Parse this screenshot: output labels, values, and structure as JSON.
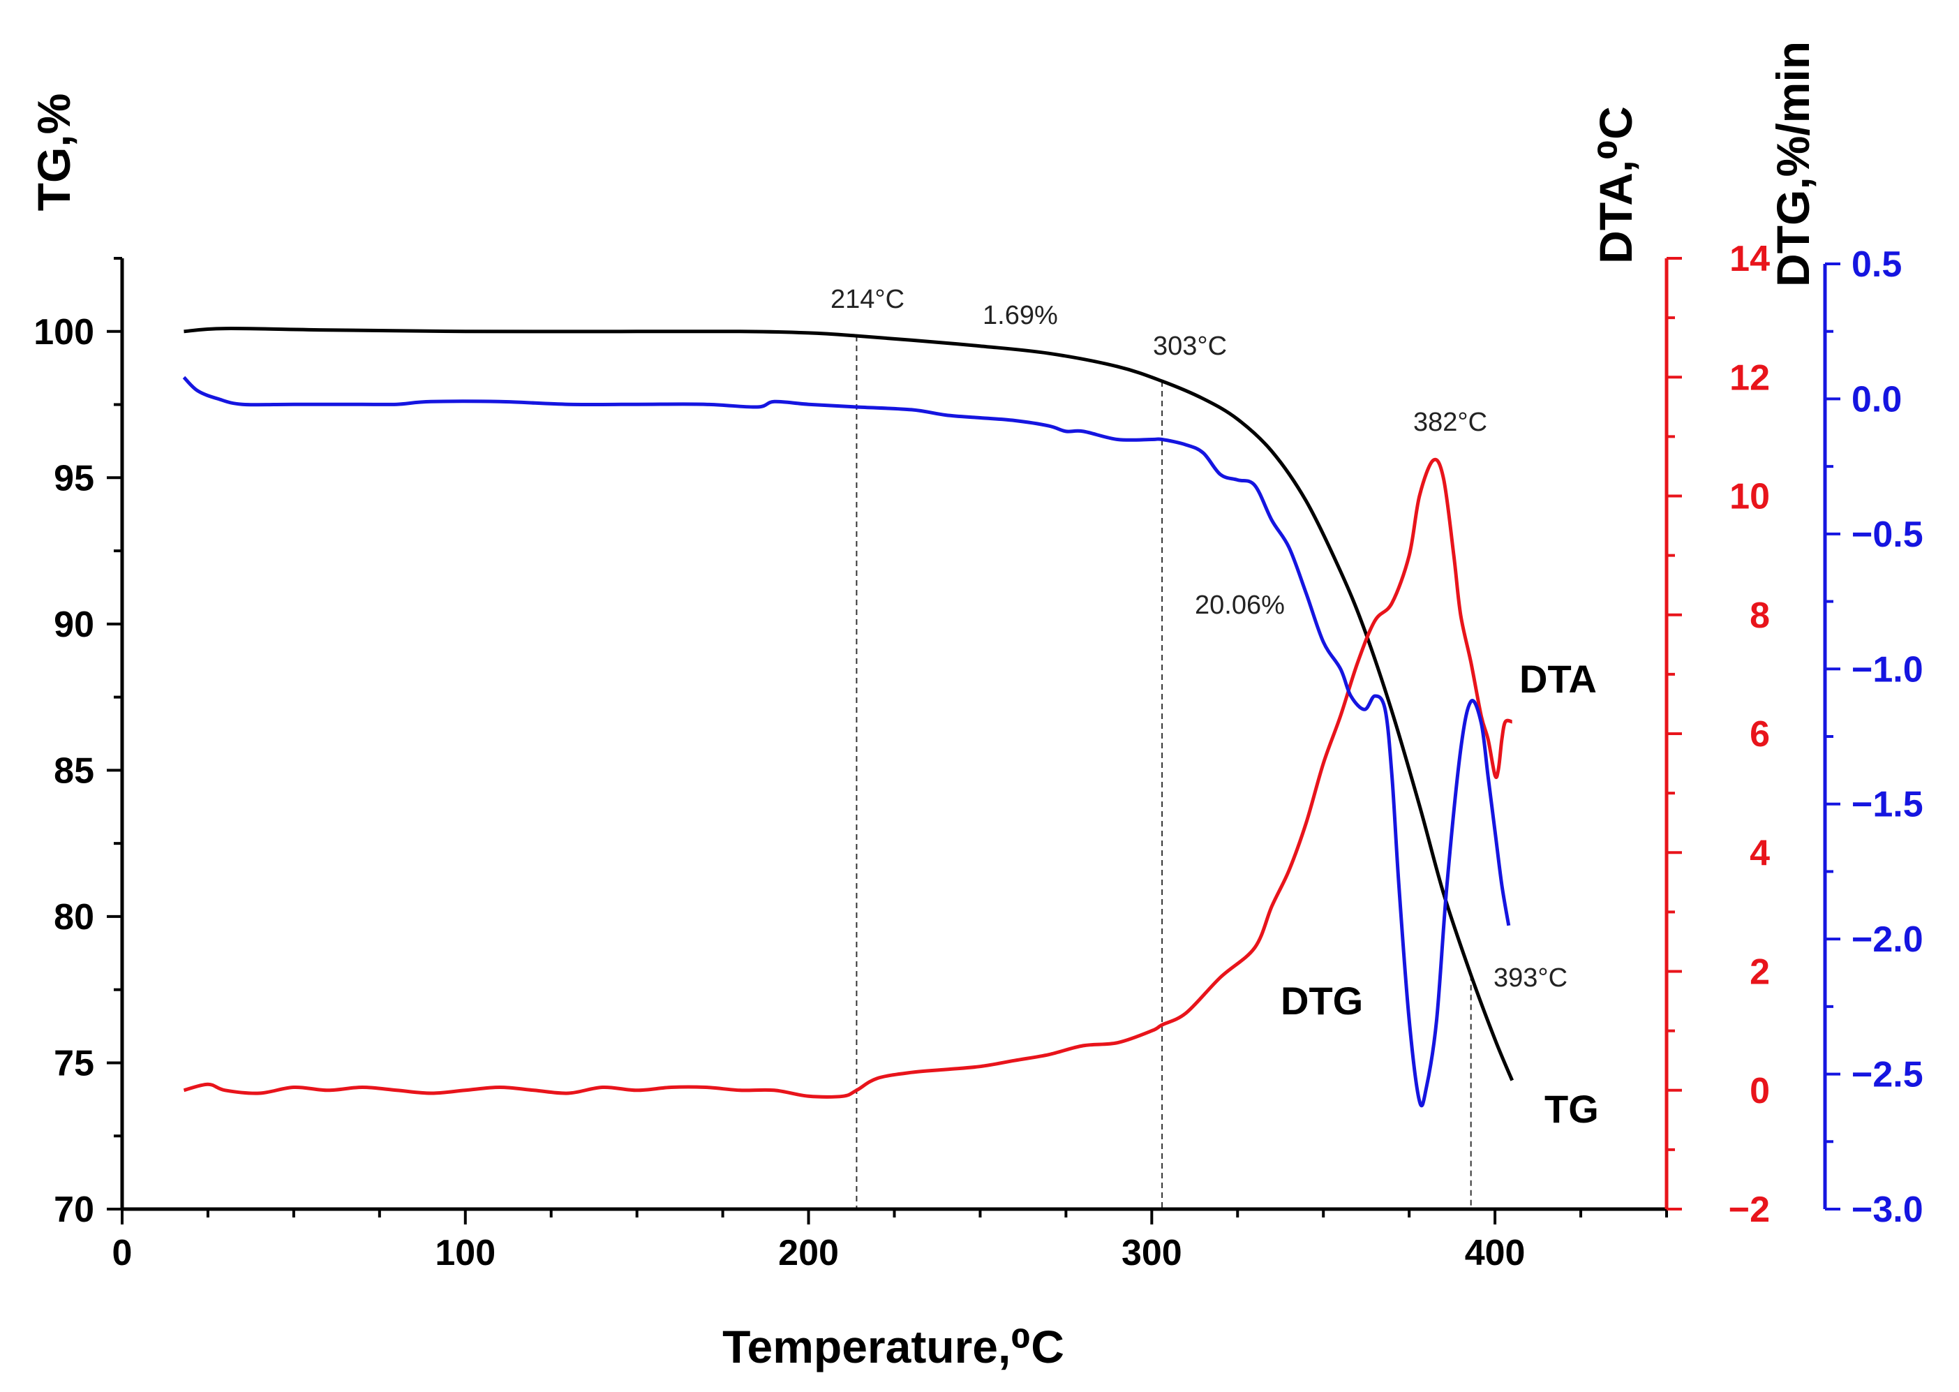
{
  "chart_data": {
    "type": "line",
    "title": "",
    "xlabel": "Temperature,⁰C",
    "xlim": [
      0,
      450
    ],
    "xticks": [
      0,
      100,
      200,
      300,
      400
    ],
    "grid": false,
    "axes": {
      "tg": {
        "label": "TG,%",
        "color": "#000000",
        "lim": [
          70,
          102.5
        ],
        "ticks": [
          70,
          75,
          80,
          85,
          90,
          95,
          100
        ]
      },
      "dta": {
        "label": "DTA,⁰C",
        "color": "#e8141b",
        "lim": [
          -2,
          14
        ],
        "ticks": [
          -2,
          0,
          2,
          4,
          6,
          8,
          10,
          12,
          14
        ]
      },
      "dtg": {
        "label": "DTG,%/min",
        "color": "#1515e0",
        "lim": [
          -3.0,
          0.5
        ],
        "ticks": [
          "0.5",
          "0.0",
          "−0.5",
          "−1.0",
          "−1.5",
          "−2.0",
          "−2.5",
          "−3.0"
        ],
        "tick_values": [
          0.5,
          0.0,
          -0.5,
          -1.0,
          -1.5,
          -2.0,
          -2.5,
          -3.0
        ]
      }
    },
    "series": [
      {
        "name": "TG",
        "axis": "tg",
        "color": "#000000",
        "x": [
          18,
          30,
          60,
          100,
          150,
          180,
          200,
          214,
          230,
          250,
          270,
          290,
          303,
          315,
          325,
          335,
          345,
          355,
          362,
          370,
          378,
          385,
          393,
          400,
          405
        ],
        "y": [
          100.0,
          100.1,
          100.05,
          100.0,
          100.0,
          100.0,
          99.95,
          99.85,
          99.7,
          99.5,
          99.25,
          98.8,
          98.3,
          97.7,
          97.0,
          95.9,
          94.2,
          91.8,
          89.8,
          87.0,
          83.8,
          80.8,
          78.0,
          75.8,
          74.4
        ]
      },
      {
        "name": "DTA",
        "axis": "dta",
        "color": "#e8141b",
        "x": [
          18,
          25,
          30,
          40,
          50,
          60,
          70,
          80,
          90,
          100,
          110,
          120,
          130,
          140,
          150,
          160,
          170,
          180,
          190,
          200,
          210,
          214,
          220,
          230,
          240,
          250,
          260,
          270,
          280,
          290,
          300,
          303,
          310,
          320,
          330,
          335,
          340,
          345,
          350,
          355,
          360,
          365,
          370,
          375,
          378,
          382,
          385,
          388,
          390,
          393,
          396,
          398,
          400,
          401,
          402,
          403,
          405
        ],
        "y": [
          0.0,
          0.1,
          0.0,
          -0.05,
          0.05,
          0.0,
          0.05,
          0.0,
          -0.05,
          0.0,
          0.05,
          0.0,
          -0.05,
          0.05,
          0.0,
          0.05,
          0.05,
          0.0,
          0.0,
          -0.1,
          -0.1,
          0.0,
          0.2,
          0.3,
          0.35,
          0.4,
          0.5,
          0.6,
          0.75,
          0.8,
          1.0,
          1.1,
          1.3,
          1.9,
          2.4,
          3.1,
          3.7,
          4.5,
          5.5,
          6.3,
          7.2,
          7.9,
          8.2,
          9.0,
          10.0,
          10.6,
          10.3,
          9.0,
          8.0,
          7.2,
          6.3,
          5.9,
          5.3,
          5.4,
          5.9,
          6.2,
          6.2
        ]
      },
      {
        "name": "DTG",
        "axis": "dtg",
        "color": "#1515e0",
        "x": [
          18,
          22,
          28,
          35,
          50,
          70,
          80,
          90,
          110,
          130,
          150,
          170,
          185,
          190,
          200,
          214,
          230,
          240,
          250,
          260,
          270,
          275,
          280,
          290,
          300,
          303,
          310,
          315,
          320,
          325,
          330,
          335,
          340,
          345,
          350,
          355,
          358,
          362,
          365,
          368,
          370,
          372,
          375,
          378,
          380,
          383,
          386,
          390,
          393,
          396,
          398,
          400,
          402,
          404
        ],
        "y": [
          0.08,
          0.03,
          0.0,
          -0.02,
          -0.02,
          -0.02,
          -0.02,
          -0.01,
          -0.01,
          -0.02,
          -0.02,
          -0.02,
          -0.03,
          -0.01,
          -0.02,
          -0.03,
          -0.04,
          -0.06,
          -0.07,
          -0.08,
          -0.1,
          -0.12,
          -0.12,
          -0.15,
          -0.15,
          -0.15,
          -0.17,
          -0.2,
          -0.28,
          -0.3,
          -0.32,
          -0.45,
          -0.55,
          -0.72,
          -0.9,
          -1.0,
          -1.1,
          -1.15,
          -1.1,
          -1.15,
          -1.4,
          -1.8,
          -2.3,
          -2.6,
          -2.55,
          -2.3,
          -1.8,
          -1.3,
          -1.12,
          -1.2,
          -1.4,
          -1.6,
          -1.8,
          -1.95
        ]
      }
    ],
    "annotations": {
      "t214": "214°C",
      "loss1": "1.69%",
      "t303": "303°C",
      "loss2": "20.06%",
      "t382": "382°C",
      "t393": "393°C"
    },
    "curve_labels": {
      "dta": "DTA",
      "dtg": "DTG",
      "tg": "TG"
    },
    "dashed_lines_x": [
      214,
      303,
      393
    ]
  }
}
